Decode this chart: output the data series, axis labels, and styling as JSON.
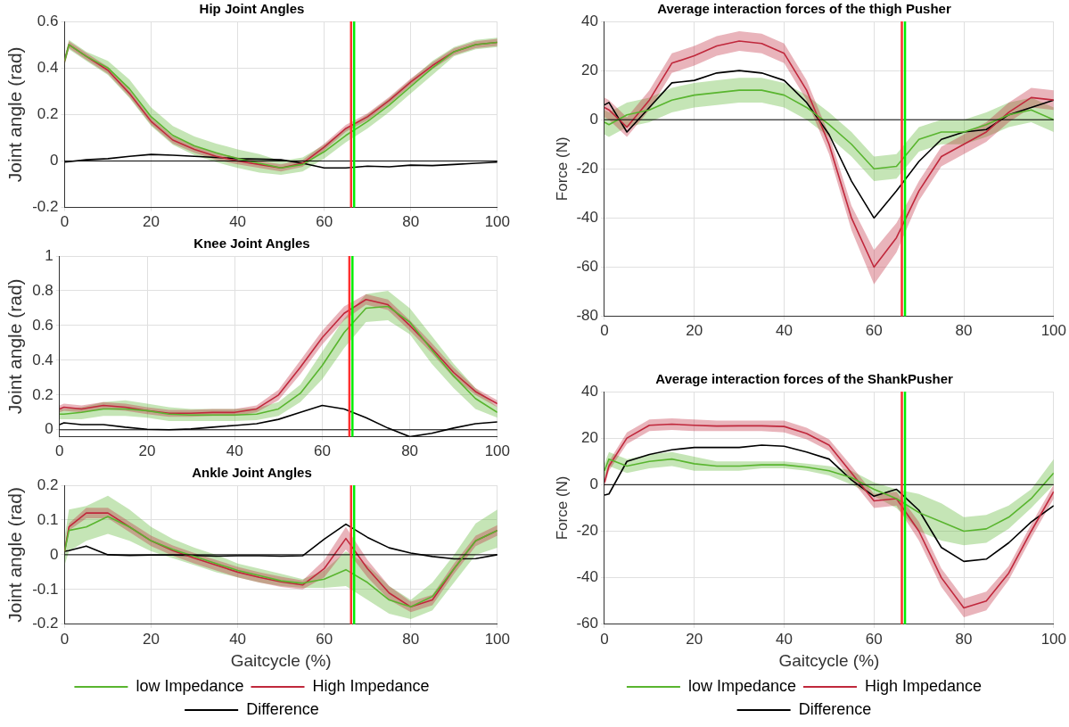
{
  "chart_data": [
    {
      "type": "line",
      "title": "Hip Joint Angles",
      "ylabel": "Joint angle (rad)",
      "x": [
        0,
        1,
        5,
        10,
        15,
        20,
        25,
        30,
        35,
        40,
        45,
        50,
        55,
        60,
        65,
        70,
        75,
        80,
        85,
        90,
        95,
        100
      ],
      "xlim": [
        0,
        100
      ],
      "xticks": [
        0,
        20,
        40,
        60,
        80,
        100
      ],
      "ylim": [
        -0.2,
        0.6
      ],
      "yticks": [
        -0.2,
        0,
        0.2,
        0.4,
        0.6
      ],
      "grid": true,
      "series": [
        {
          "color": "#59b52f",
          "values": [
            0.43,
            0.5,
            0.45,
            0.4,
            0.31,
            0.19,
            0.11,
            0.065,
            0.035,
            0.01,
            -0.01,
            -0.03,
            -0.015,
            0.04,
            0.11,
            0.17,
            0.24,
            0.32,
            0.4,
            0.47,
            0.5,
            0.51
          ],
          "lower": [
            0.41,
            0.48,
            0.43,
            0.37,
            0.27,
            0.15,
            0.07,
            0.025,
            -0.005,
            -0.03,
            -0.05,
            -0.06,
            -0.045,
            0.01,
            0.08,
            0.14,
            0.21,
            0.29,
            0.37,
            0.45,
            0.48,
            0.49
          ],
          "upper": [
            0.45,
            0.52,
            0.47,
            0.43,
            0.35,
            0.23,
            0.15,
            0.105,
            0.075,
            0.05,
            0.03,
            0.0,
            0.015,
            0.07,
            0.14,
            0.2,
            0.27,
            0.35,
            0.43,
            0.49,
            0.52,
            0.53
          ]
        },
        {
          "color": "#c0283c",
          "values": [
            0.43,
            0.5,
            0.45,
            0.39,
            0.29,
            0.17,
            0.09,
            0.05,
            0.02,
            0.0,
            -0.015,
            -0.03,
            -0.01,
            0.06,
            0.14,
            0.19,
            0.26,
            0.34,
            0.41,
            0.47,
            0.5,
            0.51
          ],
          "lower": [
            0.415,
            0.485,
            0.435,
            0.375,
            0.275,
            0.155,
            0.075,
            0.035,
            0.005,
            -0.015,
            -0.03,
            -0.045,
            -0.025,
            0.045,
            0.125,
            0.175,
            0.245,
            0.325,
            0.395,
            0.455,
            0.485,
            0.495
          ],
          "upper": [
            0.445,
            0.515,
            0.465,
            0.405,
            0.305,
            0.185,
            0.105,
            0.065,
            0.035,
            0.015,
            0.0,
            -0.015,
            0.005,
            0.075,
            0.155,
            0.205,
            0.275,
            0.355,
            0.425,
            0.485,
            0.515,
            0.525
          ]
        },
        {
          "color": "#000000",
          "values": [
            -0.005,
            -0.003,
            0.005,
            0.01,
            0.02,
            0.028,
            0.025,
            0.02,
            0.015,
            0.01,
            0.008,
            0.005,
            -0.01,
            -0.03,
            -0.03,
            -0.022,
            -0.025,
            -0.018,
            -0.02,
            -0.015,
            -0.01,
            -0.005
          ]
        }
      ],
      "ref_lines": [
        {
          "axis": "y",
          "value": 0,
          "color": "#000000"
        },
        {
          "axis": "x",
          "value": 66.2,
          "color": "#ff3030"
        },
        {
          "axis": "x",
          "value": 66.9,
          "color": "#00ee00"
        }
      ]
    },
    {
      "type": "line",
      "title": "Knee Joint Angles",
      "ylabel": "Joint angle (rad)",
      "x": [
        0,
        1,
        5,
        10,
        15,
        20,
        25,
        30,
        35,
        40,
        45,
        50,
        55,
        60,
        65,
        70,
        75,
        80,
        85,
        90,
        95,
        100
      ],
      "xlim": [
        0,
        100
      ],
      "xticks": [
        0,
        20,
        40,
        60,
        80,
        100
      ],
      "ylim": [
        -0.04,
        1
      ],
      "yticks": [
        0,
        0.2,
        0.4,
        0.6,
        0.8,
        1
      ],
      "grid": true,
      "series": [
        {
          "color": "#59b52f",
          "values": [
            0.09,
            0.09,
            0.1,
            0.12,
            0.12,
            0.11,
            0.09,
            0.085,
            0.085,
            0.085,
            0.09,
            0.12,
            0.21,
            0.37,
            0.56,
            0.7,
            0.71,
            0.62,
            0.46,
            0.31,
            0.18,
            0.1
          ],
          "lower": [
            0.06,
            0.06,
            0.06,
            0.08,
            0.08,
            0.07,
            0.05,
            0.05,
            0.05,
            0.05,
            0.055,
            0.08,
            0.16,
            0.29,
            0.47,
            0.62,
            0.63,
            0.55,
            0.38,
            0.24,
            0.12,
            0.07
          ],
          "upper": [
            0.12,
            0.12,
            0.13,
            0.16,
            0.17,
            0.15,
            0.13,
            0.12,
            0.12,
            0.12,
            0.125,
            0.16,
            0.26,
            0.45,
            0.64,
            0.78,
            0.8,
            0.7,
            0.54,
            0.38,
            0.24,
            0.13
          ]
        },
        {
          "color": "#c0283c",
          "values": [
            0.12,
            0.13,
            0.12,
            0.14,
            0.13,
            0.11,
            0.095,
            0.095,
            0.1,
            0.1,
            0.12,
            0.2,
            0.36,
            0.53,
            0.67,
            0.75,
            0.72,
            0.6,
            0.47,
            0.33,
            0.22,
            0.15
          ],
          "lower": [
            0.1,
            0.11,
            0.1,
            0.12,
            0.11,
            0.09,
            0.075,
            0.075,
            0.08,
            0.08,
            0.1,
            0.17,
            0.32,
            0.49,
            0.63,
            0.72,
            0.69,
            0.57,
            0.44,
            0.3,
            0.2,
            0.13
          ],
          "upper": [
            0.14,
            0.15,
            0.14,
            0.16,
            0.15,
            0.13,
            0.115,
            0.115,
            0.12,
            0.12,
            0.14,
            0.23,
            0.4,
            0.57,
            0.71,
            0.78,
            0.75,
            0.63,
            0.5,
            0.36,
            0.24,
            0.17
          ]
        },
        {
          "color": "#000000",
          "values": [
            0.03,
            0.04,
            0.03,
            0.03,
            0.015,
            0.003,
            0,
            0.005,
            0.015,
            0.025,
            0.035,
            0.06,
            0.1,
            0.14,
            0.12,
            0.07,
            0.01,
            -0.04,
            -0.02,
            0.01,
            0.035,
            0.045
          ]
        }
      ],
      "ref_lines": [
        {
          "axis": "y",
          "value": 0,
          "color": "#000000"
        },
        {
          "axis": "x",
          "value": 66.2,
          "color": "#ff3030"
        },
        {
          "axis": "x",
          "value": 66.9,
          "color": "#00ee00"
        }
      ]
    },
    {
      "type": "line",
      "title": "Ankle Joint Angles",
      "xlabel": "Gaitcycle (%)",
      "ylabel": "Joint angle (rad)",
      "x": [
        0,
        1,
        5,
        10,
        15,
        20,
        25,
        30,
        35,
        40,
        45,
        50,
        55,
        60,
        65,
        70,
        75,
        80,
        85,
        90,
        95,
        100
      ],
      "xlim": [
        0,
        100
      ],
      "xticks": [
        0,
        20,
        40,
        60,
        80,
        100
      ],
      "ylim": [
        -0.2,
        0.2
      ],
      "yticks": [
        -0.2,
        -0.1,
        0,
        0.1,
        0.2
      ],
      "grid": true,
      "legend": "bottom",
      "series": [
        {
          "name": "low Impedance",
          "color": "#59b52f",
          "values": [
            0.01,
            0.07,
            0.08,
            0.11,
            0.08,
            0.04,
            0.015,
            -0.005,
            -0.025,
            -0.045,
            -0.06,
            -0.075,
            -0.082,
            -0.07,
            -0.043,
            -0.08,
            -0.13,
            -0.15,
            -0.12,
            -0.04,
            0.04,
            0.07
          ],
          "lower": [
            -0.03,
            0.01,
            0.04,
            0.06,
            0.04,
            0.01,
            -0.01,
            -0.03,
            -0.05,
            -0.065,
            -0.08,
            -0.09,
            -0.095,
            -0.095,
            -0.09,
            -0.13,
            -0.17,
            -0.185,
            -0.16,
            -0.08,
            0.0,
            0.02
          ],
          "upper": [
            0.05,
            0.13,
            0.14,
            0.17,
            0.13,
            0.08,
            0.045,
            0.02,
            0.0,
            -0.025,
            -0.04,
            -0.055,
            -0.07,
            -0.045,
            0.01,
            -0.03,
            -0.09,
            -0.13,
            -0.08,
            0.0,
            0.09,
            0.13
          ]
        },
        {
          "name": "High Impedance",
          "color": "#c0283c",
          "values": [
            0.01,
            0.08,
            0.12,
            0.12,
            0.08,
            0.04,
            0.012,
            -0.01,
            -0.03,
            -0.05,
            -0.065,
            -0.078,
            -0.087,
            -0.04,
            0.047,
            -0.04,
            -0.11,
            -0.15,
            -0.13,
            -0.04,
            0.04,
            0.07
          ],
          "lower": [
            0.0,
            0.07,
            0.105,
            0.105,
            0.065,
            0.025,
            -0.003,
            -0.025,
            -0.045,
            -0.065,
            -0.08,
            -0.093,
            -0.1,
            -0.065,
            0.015,
            -0.065,
            -0.13,
            -0.165,
            -0.145,
            -0.055,
            0.025,
            0.055
          ],
          "upper": [
            0.02,
            0.09,
            0.135,
            0.135,
            0.095,
            0.055,
            0.027,
            0.005,
            -0.015,
            -0.035,
            -0.05,
            -0.063,
            -0.074,
            -0.015,
            0.08,
            -0.015,
            -0.09,
            -0.135,
            -0.115,
            -0.025,
            0.055,
            0.085
          ]
        },
        {
          "name": "Difference",
          "color": "#000000",
          "values": [
            0.01,
            0.012,
            0.025,
            0.0,
            -0.002,
            -0.001,
            -0.001,
            -0.002,
            -0.004,
            -0.003,
            -0.003,
            -0.004,
            -0.003,
            0.045,
            0.088,
            0.05,
            0.02,
            0.005,
            -0.005,
            -0.012,
            -0.011,
            0.0
          ]
        }
      ],
      "ref_lines": [
        {
          "axis": "y",
          "value": 0,
          "color": "#000000"
        },
        {
          "axis": "x",
          "value": 66.2,
          "color": "#ff3030"
        },
        {
          "axis": "x",
          "value": 66.9,
          "color": "#00ee00"
        }
      ]
    },
    {
      "type": "line",
      "title": "Average interaction forces of the thigh Pusher",
      "ylabel": "Force (N)",
      "x": [
        0,
        1,
        5,
        10,
        15,
        20,
        25,
        30,
        35,
        40,
        45,
        50,
        55,
        60,
        65,
        70,
        75,
        80,
        85,
        90,
        95,
        100
      ],
      "xlim": [
        0,
        100
      ],
      "xticks": [
        0,
        20,
        40,
        60,
        80,
        100
      ],
      "ylim": [
        -80,
        40
      ],
      "yticks": [
        -80,
        -60,
        -40,
        -20,
        0,
        20,
        40
      ],
      "grid": true,
      "series": [
        {
          "color": "#59b52f",
          "values": [
            -1,
            -2,
            2,
            4,
            8,
            10,
            11,
            12,
            12,
            10,
            5,
            -2,
            -10,
            -20,
            -19,
            -8,
            -5,
            -5,
            -2,
            2,
            4,
            0
          ],
          "lower": [
            -6,
            -7,
            -3,
            -1,
            3,
            5,
            6,
            7,
            7,
            5,
            0,
            -7,
            -15,
            -25,
            -24,
            -13,
            -10,
            -10,
            -7,
            -3,
            -1,
            -5
          ],
          "upper": [
            4,
            3,
            7,
            9,
            13,
            15,
            16,
            17,
            17,
            15,
            10,
            3,
            -5,
            -15,
            -14,
            -3,
            0,
            0,
            3,
            7,
            9,
            5
          ]
        },
        {
          "color": "#c0283c",
          "values": [
            5,
            4,
            -3,
            8,
            23,
            26,
            30,
            32,
            31,
            27,
            12,
            -10,
            -40,
            -60,
            -48,
            -29,
            -15,
            -10,
            -5,
            3,
            9,
            8
          ],
          "lower": [
            1,
            0,
            -7,
            4,
            19,
            22,
            26,
            28,
            27,
            23,
            8,
            -14,
            -45,
            -67,
            -54,
            -33,
            -19,
            -14,
            -9,
            -1,
            5,
            4
          ],
          "upper": [
            9,
            8,
            1,
            12,
            27,
            30,
            34,
            36,
            35,
            31,
            16,
            -6,
            -35,
            -53,
            -42,
            -25,
            -11,
            -6,
            -1,
            7,
            13,
            12
          ]
        },
        {
          "color": "#000000",
          "values": [
            6,
            7,
            -5,
            5,
            15,
            16,
            19,
            20,
            19,
            16,
            7,
            -6,
            -25,
            -40,
            -29,
            -17,
            -8,
            -5,
            -4,
            2,
            5,
            8
          ]
        }
      ],
      "ref_lines": [
        {
          "axis": "y",
          "value": 0,
          "color": "#000000"
        },
        {
          "axis": "x",
          "value": 66.2,
          "color": "#ff3030"
        },
        {
          "axis": "x",
          "value": 66.9,
          "color": "#00ee00"
        }
      ]
    },
    {
      "type": "line",
      "title": "Average interaction forces of the ShankPusher",
      "xlabel": "Gaitcycle (%)",
      "ylabel": "Force (N)",
      "x": [
        0,
        1,
        5,
        10,
        15,
        20,
        25,
        30,
        35,
        40,
        45,
        50,
        55,
        60,
        65,
        70,
        75,
        80,
        85,
        90,
        95,
        100
      ],
      "xlim": [
        0,
        100
      ],
      "xticks": [
        0,
        20,
        40,
        60,
        80,
        100
      ],
      "ylim": [
        -60,
        40
      ],
      "yticks": [
        -60,
        -40,
        -20,
        0,
        20,
        40
      ],
      "grid": true,
      "legend": "bottom",
      "series": [
        {
          "name": "low Impedance",
          "color": "#59b52f",
          "values": [
            6,
            11,
            8,
            10,
            11,
            9,
            8,
            8,
            8.5,
            8.5,
            7.5,
            6,
            3,
            -2,
            -6,
            -12,
            -16,
            -20,
            -19,
            -14,
            -6,
            5
          ],
          "lower": [
            3,
            8,
            5,
            7,
            8,
            6,
            6,
            6,
            7,
            7,
            6,
            4,
            0,
            -5,
            -10,
            -20,
            -24,
            -26,
            -25,
            -19,
            -10,
            0
          ],
          "upper": [
            9,
            14,
            11,
            13,
            14,
            12,
            10,
            10,
            10,
            10,
            9,
            8,
            6,
            1,
            -2,
            -4,
            -8,
            -14,
            -13,
            -9,
            -2,
            11
          ]
        },
        {
          "name": "High Impedance",
          "color": "#c0283c",
          "values": [
            1,
            8,
            20,
            25.5,
            26,
            25.5,
            25.2,
            25.3,
            25.3,
            25,
            22,
            17,
            5,
            -7,
            -6,
            -20,
            -40,
            -53,
            -50,
            -38,
            -20,
            -3
          ],
          "lower": [
            -1,
            6,
            17.5,
            23,
            23.5,
            23,
            23,
            23,
            23,
            22.5,
            19.5,
            14.5,
            2,
            -10,
            -9,
            -24,
            -44,
            -57,
            -54,
            -41,
            -23,
            -6
          ],
          "upper": [
            3,
            10,
            22.5,
            28,
            28.5,
            28,
            27.5,
            27.5,
            27.5,
            27.5,
            24.5,
            19.5,
            8,
            -4,
            -3,
            -16,
            -36,
            -49,
            -46,
            -35,
            -17,
            0
          ]
        },
        {
          "name": "Difference",
          "color": "#000000",
          "values": [
            -4.5,
            -4,
            10,
            13,
            15,
            16,
            16,
            16,
            17,
            16.5,
            14,
            11,
            2,
            -5,
            -2,
            -11,
            -27,
            -33,
            -32,
            -25,
            -16,
            -9
          ]
        }
      ],
      "ref_lines": [
        {
          "axis": "y",
          "value": 0,
          "color": "#000000"
        },
        {
          "axis": "x",
          "value": 66.2,
          "color": "#ff3030"
        },
        {
          "axis": "x",
          "value": 66.9,
          "color": "#00ee00"
        }
      ]
    }
  ]
}
